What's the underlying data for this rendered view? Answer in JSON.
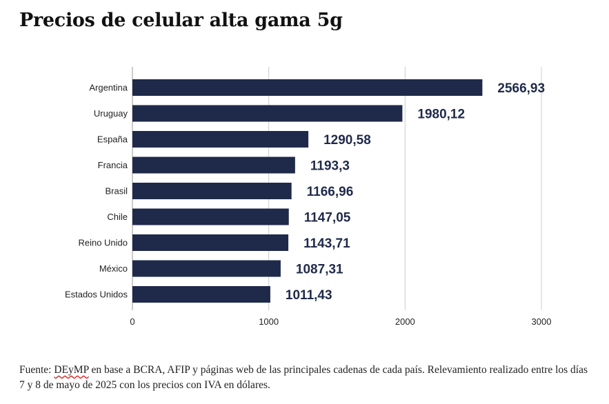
{
  "chart_data": {
    "type": "bar",
    "orientation": "horizontal",
    "title": "Precios de celular alta gama 5g",
    "categories": [
      "Argentina",
      "Uruguay",
      "España",
      "Francia",
      "Brasil",
      "Chile",
      "Reino Unido",
      "México",
      "Estados Unidos"
    ],
    "values": [
      2566.93,
      1980.12,
      1290.58,
      1193.3,
      1166.96,
      1147.05,
      1143.71,
      1087.31,
      1011.43
    ],
    "value_labels": [
      "2566,93",
      "1980,12",
      "1290,58",
      "1193,3",
      "1166,96",
      "1147,05",
      "1143,71",
      "1087,31",
      "1011,43"
    ],
    "xlim": [
      0,
      3000
    ],
    "xticks": [
      0,
      1000,
      2000,
      3000
    ],
    "xtick_labels": [
      "0",
      "1000",
      "2000",
      "3000"
    ],
    "grid": true,
    "bar_color": "#1f2a4a",
    "grid_color": "#cccccc"
  },
  "source": {
    "prefix": "Fuente: ",
    "org": "DEyMP",
    "rest": " en base a BCRA, AFIP y páginas web de las principales cadenas de cada país. Relevamiento realizado entre los días 7 y 8 de mayo de 2025 con los precios con IVA en dólares."
  }
}
